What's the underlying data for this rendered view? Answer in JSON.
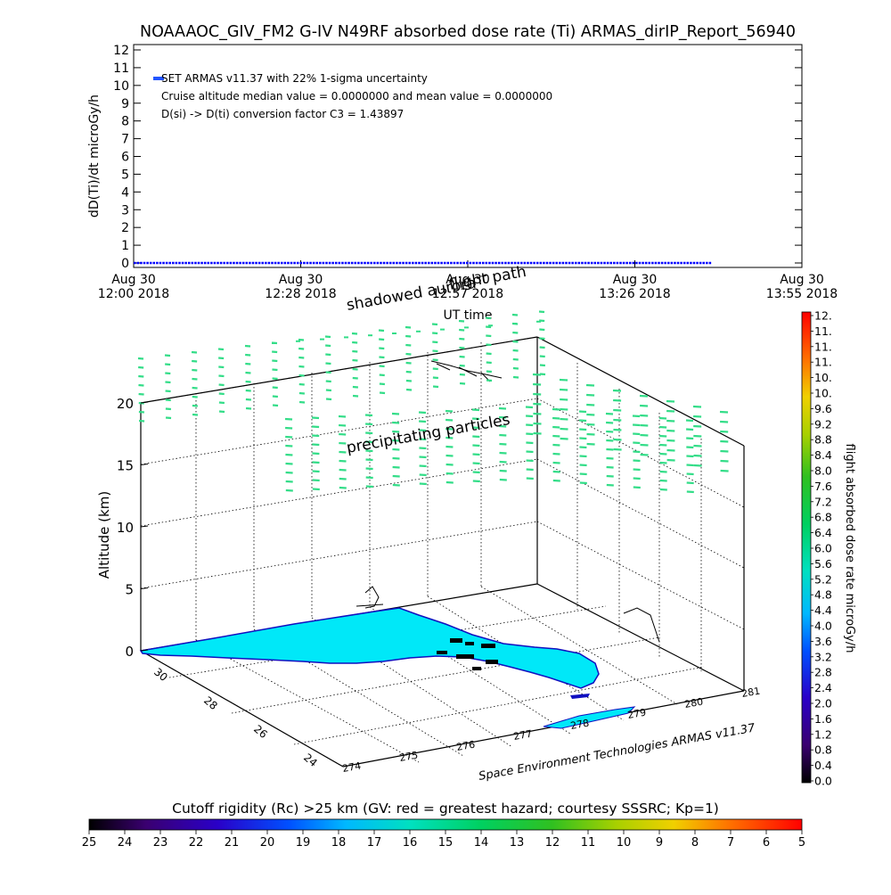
{
  "title": "NOAAAOC_GIV_FM2 G-IV    N49RF  absorbed dose rate (Ti) ARMAS_dirIP_Report_56940",
  "chart_data": [
    {
      "type": "scatter",
      "ylabel": "dD(Ti)/dt microGy/h",
      "xlabel": "UT time",
      "ylim": [
        0,
        12
      ],
      "yticks": [
        0,
        1,
        2,
        3,
        4,
        5,
        6,
        7,
        8,
        9,
        10,
        11,
        12
      ],
      "xticks": [
        {
          "line1": "Aug 30",
          "line2": "12:00 2018"
        },
        {
          "line1": "Aug 30",
          "line2": "12:28 2018"
        },
        {
          "line1": "Aug 30",
          "line2": "12:57 2018"
        },
        {
          "line1": "Aug 30",
          "line2": "13:26 2018"
        },
        {
          "line1": "Aug 30",
          "line2": "13:55 2018"
        }
      ],
      "xlim_minutes_after_1200": [
        0,
        115
      ],
      "series": [
        {
          "color": "#0000ff",
          "x_start_min": 0,
          "x_end_min": 99.5,
          "value": 0,
          "marker": "dash"
        }
      ],
      "legend": {
        "symbol_color": "#2255ff",
        "lines": [
          "SET ARMAS v11.37 with 22% 1-sigma uncertainty",
          "Cruise altitude median value = 0.0000000 and mean value = 0.0000000",
          "D(si) -> D(ti) conversion factor C3 = 1.43897"
        ]
      }
    },
    {
      "type": "surface3d",
      "zlabel": "Altitude (km)",
      "zticks": [
        0,
        5,
        10,
        15,
        20
      ],
      "latitude_ticks": [
        "30",
        "28",
        "26",
        "24"
      ],
      "longitude_ticks": [
        "274",
        "275",
        "276",
        "277",
        "278",
        "279",
        "280",
        "281"
      ],
      "annotations": [
        "shadowed aurora",
        "flight path",
        "precipitating particles"
      ],
      "credit": "Space Environment Technologies ARMAS v11.37",
      "particle_color": "#33dd88",
      "land_color": "#00e8f8"
    }
  ],
  "colorbar_right": {
    "label": "flight absorbed dose rate microGy/h",
    "ticks": [
      "0.0",
      "0.4",
      "0.8",
      "1.2",
      "1.6",
      "2.0",
      "2.4",
      "2.8",
      "3.2",
      "3.6",
      "4.0",
      "4.4",
      "4.8",
      "5.2",
      "5.6",
      "6.0",
      "6.4",
      "6.8",
      "7.2",
      "7.6",
      "8.0",
      "8.4",
      "8.8",
      "9.2",
      "9.6",
      "10.",
      "10.",
      "11.",
      "11.",
      "11.",
      "12."
    ]
  },
  "colorbar_bottom": {
    "label": "Cutoff rigidity (Rc) >25 km (GV: red = greatest hazard; courtesy SSSRC; Kp=1)",
    "ticks": [
      "25",
      "24",
      "23",
      "22",
      "21",
      "20",
      "19",
      "18",
      "17",
      "16",
      "15",
      "14",
      "13",
      "12",
      "11",
      "10",
      "9",
      "8",
      "7",
      "6",
      "5"
    ]
  }
}
